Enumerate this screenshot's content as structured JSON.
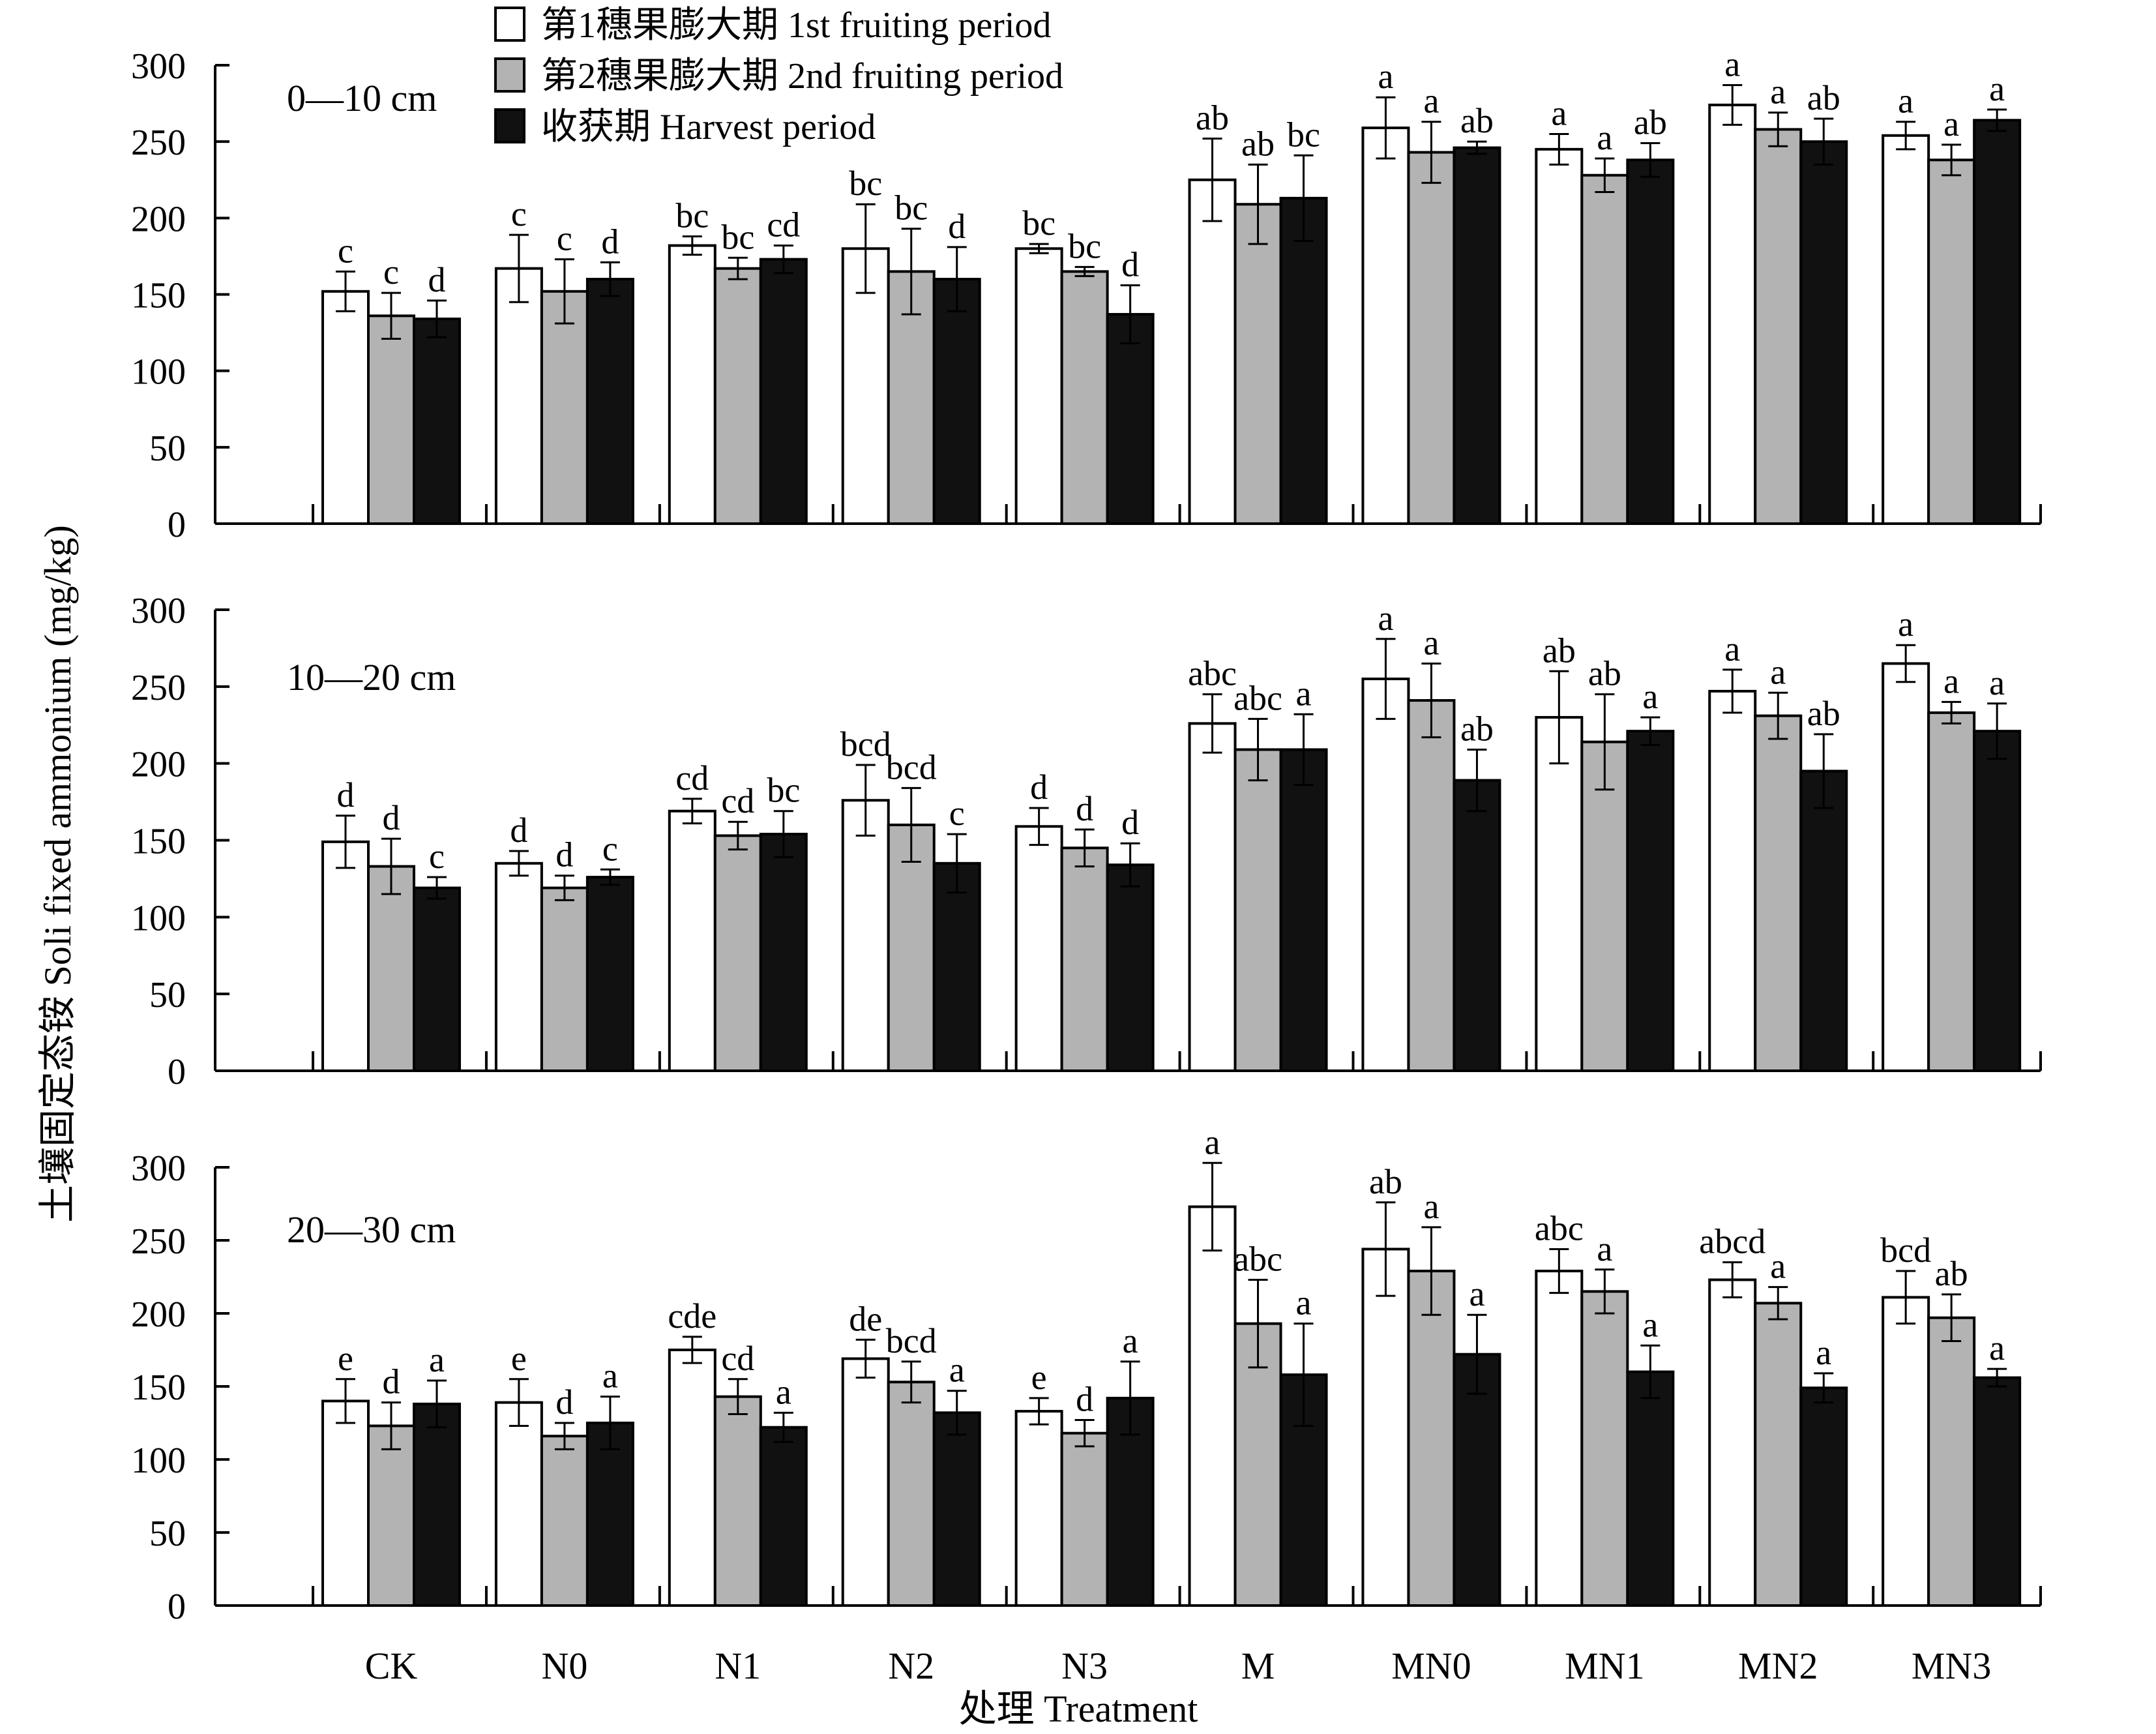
{
  "figure": {
    "ylabel": "土壤固定态铵 Soli fixed ammonium (mg/kg)",
    "xlabel": "处理 Treatment",
    "legend": [
      {
        "label": "第1穗果膨大期 1st fruiting period",
        "color": "#ffffff"
      },
      {
        "label": "第2穗果膨大期 2nd fruiting period",
        "color": "#b3b3b3"
      },
      {
        "label": "收获期 Harvest period",
        "color": "#111111"
      }
    ]
  },
  "chart_data": [
    {
      "type": "bar",
      "title": "0—10 cm",
      "categories": [
        "CK",
        "N0",
        "N1",
        "N2",
        "N3",
        "M",
        "MN0",
        "MN1",
        "MN2",
        "MN3"
      ],
      "ylim": [
        0,
        300
      ],
      "yticks": [
        0,
        50,
        100,
        150,
        200,
        250,
        300
      ],
      "series": [
        {
          "name": "第1穗果膨大期 1st fruiting period",
          "values": [
            152,
            167,
            182,
            180,
            180,
            225,
            259,
            245,
            274,
            254
          ],
          "errors": [
            13,
            22,
            6,
            29,
            3,
            27,
            20,
            10,
            13,
            9
          ],
          "letters": [
            "c",
            "c",
            "bc",
            "bc",
            "bc",
            "ab",
            "a",
            "a",
            "a",
            "a"
          ]
        },
        {
          "name": "第2穗果膨大期 2nd fruiting period",
          "values": [
            136,
            152,
            167,
            165,
            165,
            209,
            243,
            228,
            258,
            238
          ],
          "errors": [
            15,
            21,
            7,
            28,
            3,
            26,
            20,
            11,
            11,
            10
          ],
          "letters": [
            "c",
            "c",
            "bc",
            "bc",
            "bc",
            "ab",
            "a",
            "a",
            "a",
            "a"
          ]
        },
        {
          "name": "收获期 Harvest period",
          "values": [
            134,
            160,
            173,
            160,
            137,
            213,
            246,
            238,
            250,
            264
          ],
          "errors": [
            12,
            11,
            9,
            21,
            19,
            28,
            4,
            11,
            15,
            7
          ],
          "letters": [
            "d",
            "d",
            "cd",
            "d",
            "d",
            "bc",
            "ab",
            "ab",
            "ab",
            "a"
          ]
        }
      ]
    },
    {
      "type": "bar",
      "title": "10—20 cm",
      "categories": [
        "CK",
        "N0",
        "N1",
        "N2",
        "N3",
        "M",
        "MN0",
        "MN1",
        "MN2",
        "MN3"
      ],
      "ylim": [
        0,
        300
      ],
      "yticks": [
        0,
        50,
        100,
        150,
        200,
        250,
        300
      ],
      "series": [
        {
          "name": "第1穗果膨大期 1st fruiting period",
          "values": [
            149,
            135,
            169,
            176,
            159,
            226,
            255,
            230,
            247,
            265
          ],
          "errors": [
            17,
            8,
            8,
            23,
            12,
            19,
            26,
            30,
            14,
            12
          ],
          "letters": [
            "d",
            "d",
            "cd",
            "bcd",
            "d",
            "abc",
            "a",
            "ab",
            "a",
            "a"
          ]
        },
        {
          "name": "第2穗果膨大期 2nd fruiting period",
          "values": [
            133,
            119,
            153,
            160,
            145,
            209,
            241,
            214,
            231,
            233
          ],
          "errors": [
            18,
            8,
            9,
            24,
            12,
            20,
            24,
            31,
            15,
            7
          ],
          "letters": [
            "d",
            "d",
            "cd",
            "bcd",
            "d",
            "abc",
            "a",
            "ab",
            "a",
            "a"
          ]
        },
        {
          "name": "收获期 Harvest period",
          "values": [
            119,
            126,
            154,
            135,
            134,
            209,
            189,
            221,
            195,
            221
          ],
          "errors": [
            7,
            5,
            15,
            19,
            14,
            23,
            20,
            9,
            24,
            18
          ],
          "letters": [
            "c",
            "c",
            "bc",
            "c",
            "d",
            "a",
            "ab",
            "a",
            "ab",
            "a"
          ]
        }
      ]
    },
    {
      "type": "bar",
      "title": "20—30 cm",
      "categories": [
        "CK",
        "N0",
        "N1",
        "N2",
        "N3",
        "M",
        "MN0",
        "MN1",
        "MN2",
        "MN3"
      ],
      "ylim": [
        0,
        300
      ],
      "yticks": [
        0,
        50,
        100,
        150,
        200,
        250,
        300
      ],
      "series": [
        {
          "name": "第1穗果膨大期 1st fruiting period",
          "values": [
            140,
            139,
            175,
            169,
            133,
            273,
            244,
            229,
            223,
            211
          ],
          "errors": [
            15,
            16,
            9,
            13,
            9,
            30,
            32,
            15,
            12,
            18
          ],
          "letters": [
            "e",
            "e",
            "cde",
            "de",
            "e",
            "a",
            "ab",
            "abc",
            "abcd",
            "bcd"
          ]
        },
        {
          "name": "第2穗果膨大期 2nd fruiting period",
          "values": [
            123,
            116,
            143,
            153,
            118,
            193,
            229,
            215,
            207,
            197
          ],
          "errors": [
            16,
            9,
            12,
            14,
            9,
            30,
            30,
            15,
            11,
            16
          ],
          "letters": [
            "d",
            "d",
            "cd",
            "bcd",
            "d",
            "abc",
            "a",
            "a",
            "a",
            "ab"
          ]
        },
        {
          "name": "收获期 Harvest period",
          "values": [
            138,
            125,
            122,
            132,
            142,
            158,
            172,
            160,
            149,
            156
          ],
          "errors": [
            16,
            18,
            10,
            15,
            25,
            35,
            27,
            18,
            10,
            6
          ],
          "letters": [
            "a",
            "a",
            "a",
            "a",
            "a",
            "a",
            "a",
            "a",
            "a",
            "a"
          ]
        }
      ]
    }
  ]
}
